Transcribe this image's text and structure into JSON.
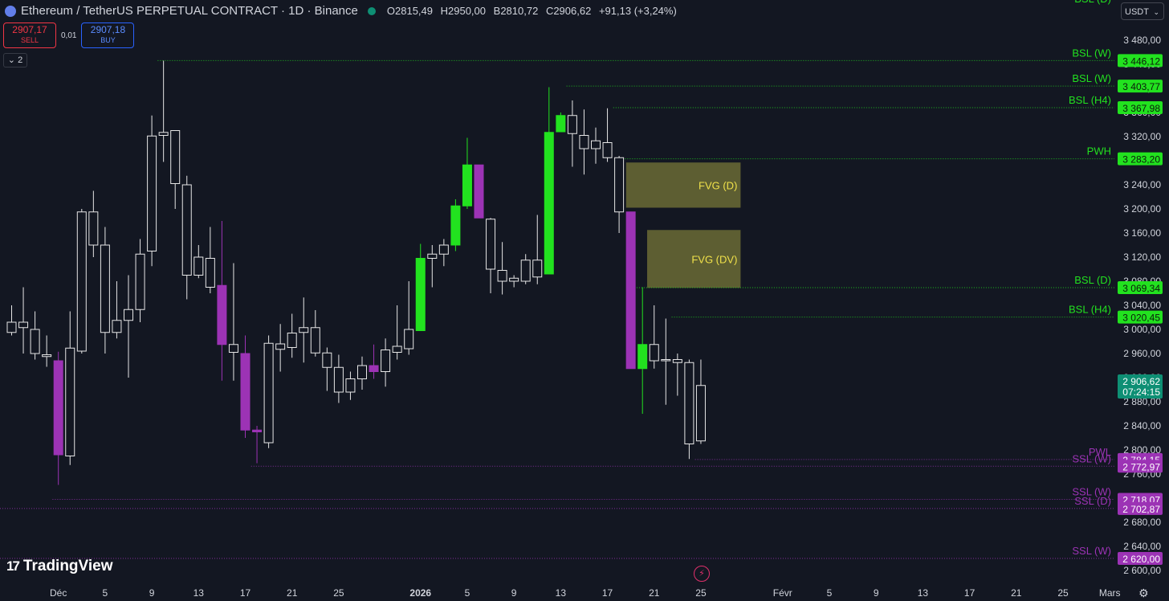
{
  "header": {
    "symbol": "Ethereum / TetherUS PERPETUAL CONTRACT · 1D · Binance",
    "open_label": "O",
    "open": "2815,49",
    "high_label": "H",
    "high": "2950,00",
    "low_label": "B",
    "low": "2810,72",
    "close_label": "C",
    "close": "2906,62",
    "change": "+91,13 (+3,24%)"
  },
  "trade": {
    "sell_price": "2907,17",
    "sell_label": "SELL",
    "spread": "0,01",
    "buy_price": "2907,18",
    "buy_label": "BUY"
  },
  "collapse_count": "2",
  "currency": "USDT",
  "brand": "TradingView",
  "colors": {
    "background": "#131722",
    "bull": "#22e21f",
    "bear": "#9c33b5",
    "neutral": "#e6e6e6",
    "fvg": "#6b6b35",
    "bsl": "#22e21f",
    "ssl": "#9c33b5",
    "current_price": "#0e8f74"
  },
  "chart_data": {
    "type": "candlestick",
    "y_axis": {
      "min": 2600,
      "max": 3480,
      "step": 40,
      "ticks": [
        "3 480,00",
        "3 440,00",
        "3 400,00",
        "3 360,00",
        "3 320,00",
        "3 280,00",
        "3 240,00",
        "3 200,00",
        "3 160,00",
        "3 120,00",
        "3 080,00",
        "3 040,00",
        "3 000,00",
        "2 960,00",
        "2 920,00",
        "2 880,00",
        "2 840,00",
        "2 800,00",
        "2 760,00",
        "2 720,00",
        "2 680,00",
        "2 640,00",
        "2 600,00"
      ]
    },
    "x_axis": {
      "labels": [
        {
          "text": "Déc",
          "index": 4
        },
        {
          "text": "5",
          "index": 8
        },
        {
          "text": "9",
          "index": 12
        },
        {
          "text": "13",
          "index": 16
        },
        {
          "text": "17",
          "index": 20
        },
        {
          "text": "21",
          "index": 24
        },
        {
          "text": "25",
          "index": 28
        },
        {
          "text": "2026",
          "index": 35,
          "bold": true
        },
        {
          "text": "5",
          "index": 39
        },
        {
          "text": "9",
          "index": 43
        },
        {
          "text": "13",
          "index": 47
        },
        {
          "text": "17",
          "index": 51
        },
        {
          "text": "21",
          "index": 55
        },
        {
          "text": "25",
          "index": 59
        },
        {
          "text": "Févr",
          "index": 66
        },
        {
          "text": "5",
          "index": 70
        },
        {
          "text": "9",
          "index": 74
        },
        {
          "text": "13",
          "index": 78
        },
        {
          "text": "17",
          "index": 82
        },
        {
          "text": "21",
          "index": 86
        },
        {
          "text": "25",
          "index": 90
        },
        {
          "text": "Mars",
          "index": 94
        }
      ]
    },
    "candles": [
      {
        "index": 0,
        "o": 3012,
        "h": 3040,
        "l": 2990,
        "c": 2995,
        "style": "neutral"
      },
      {
        "index": 1,
        "o": 3003,
        "h": 3070,
        "l": 2960,
        "c": 3012,
        "style": "neutral"
      },
      {
        "index": 2,
        "o": 3000,
        "h": 3030,
        "l": 2950,
        "c": 2960,
        "style": "neutral"
      },
      {
        "index": 3,
        "o": 2958,
        "h": 2990,
        "l": 2938,
        "c": 2955,
        "style": "neutral"
      },
      {
        "index": 4,
        "o": 2948,
        "h": 2963,
        "l": 2742,
        "c": 2792,
        "style": "bear"
      },
      {
        "index": 5,
        "o": 2790,
        "h": 3030,
        "l": 2775,
        "c": 2969,
        "style": "neutral"
      },
      {
        "index": 6,
        "o": 2964,
        "h": 3200,
        "l": 2960,
        "c": 3195,
        "style": "neutral"
      },
      {
        "index": 7,
        "o": 3195,
        "h": 3230,
        "l": 3120,
        "c": 3140,
        "style": "neutral"
      },
      {
        "index": 8,
        "o": 3140,
        "h": 3170,
        "l": 2960,
        "c": 2995,
        "style": "neutral"
      },
      {
        "index": 9,
        "o": 2995,
        "h": 3080,
        "l": 2985,
        "c": 3015,
        "style": "neutral"
      },
      {
        "index": 10,
        "o": 3015,
        "h": 3090,
        "l": 2920,
        "c": 3033,
        "style": "neutral"
      },
      {
        "index": 11,
        "o": 3033,
        "h": 3150,
        "l": 3012,
        "c": 3125,
        "style": "neutral"
      },
      {
        "index": 12,
        "o": 3130,
        "h": 3355,
        "l": 3105,
        "c": 3321,
        "style": "neutral"
      },
      {
        "index": 13,
        "o": 3327,
        "h": 3446,
        "l": 3278,
        "c": 3322,
        "style": "neutral"
      },
      {
        "index": 14,
        "o": 3330,
        "h": 3330,
        "l": 3200,
        "c": 3242,
        "style": "neutral"
      },
      {
        "index": 15,
        "o": 3240,
        "h": 3255,
        "l": 3050,
        "c": 3090,
        "style": "neutral"
      },
      {
        "index": 16,
        "o": 3090,
        "h": 3140,
        "l": 3085,
        "c": 3120,
        "style": "neutral"
      },
      {
        "index": 17,
        "o": 3118,
        "h": 3170,
        "l": 3060,
        "c": 3070,
        "style": "neutral"
      },
      {
        "index": 18,
        "o": 3073,
        "h": 3180,
        "l": 2915,
        "c": 2975,
        "style": "bear"
      },
      {
        "index": 19,
        "o": 2975,
        "h": 3110,
        "l": 2915,
        "c": 2962,
        "style": "neutral"
      },
      {
        "index": 20,
        "o": 2960,
        "h": 2990,
        "l": 2820,
        "c": 2833,
        "style": "bear"
      },
      {
        "index": 21,
        "o": 2833,
        "h": 2840,
        "l": 2778,
        "c": 2830,
        "style": "bear"
      },
      {
        "index": 22,
        "o": 2812,
        "h": 2990,
        "l": 2803,
        "c": 2977,
        "style": "neutral"
      },
      {
        "index": 23,
        "o": 2976,
        "h": 3009,
        "l": 2930,
        "c": 2967,
        "style": "neutral"
      },
      {
        "index": 24,
        "o": 2970,
        "h": 3026,
        "l": 2953,
        "c": 2994,
        "style": "neutral"
      },
      {
        "index": 25,
        "o": 2995,
        "h": 3053,
        "l": 2945,
        "c": 3003,
        "style": "neutral"
      },
      {
        "index": 26,
        "o": 3003,
        "h": 3032,
        "l": 2955,
        "c": 2961,
        "style": "neutral"
      },
      {
        "index": 27,
        "o": 2961,
        "h": 2970,
        "l": 2898,
        "c": 2937,
        "style": "neutral"
      },
      {
        "index": 28,
        "o": 2937,
        "h": 2958,
        "l": 2878,
        "c": 2896,
        "style": "neutral"
      },
      {
        "index": 29,
        "o": 2896,
        "h": 2930,
        "l": 2883,
        "c": 2918,
        "style": "neutral"
      },
      {
        "index": 30,
        "o": 2918,
        "h": 2955,
        "l": 2900,
        "c": 2940,
        "style": "neutral"
      },
      {
        "index": 31,
        "o": 2940,
        "h": 2975,
        "l": 2918,
        "c": 2930,
        "style": "bear"
      },
      {
        "index": 32,
        "o": 2930,
        "h": 2985,
        "l": 2905,
        "c": 2966,
        "style": "neutral"
      },
      {
        "index": 33,
        "o": 2962,
        "h": 3040,
        "l": 2950,
        "c": 2972,
        "style": "neutral"
      },
      {
        "index": 34,
        "o": 2968,
        "h": 3080,
        "l": 2958,
        "c": 3000,
        "style": "neutral"
      },
      {
        "index": 35,
        "o": 2998,
        "h": 3142,
        "l": 2998,
        "c": 3118,
        "style": "bull"
      },
      {
        "index": 36,
        "o": 3118,
        "h": 3140,
        "l": 3070,
        "c": 3125,
        "style": "neutral"
      },
      {
        "index": 37,
        "o": 3125,
        "h": 3150,
        "l": 3105,
        "c": 3140,
        "style": "neutral"
      },
      {
        "index": 38,
        "o": 3140,
        "h": 3216,
        "l": 3130,
        "c": 3205,
        "style": "bull"
      },
      {
        "index": 39,
        "o": 3205,
        "h": 3318,
        "l": 3200,
        "c": 3273,
        "style": "bull"
      },
      {
        "index": 40,
        "o": 3273,
        "h": 3273,
        "l": 3185,
        "c": 3185,
        "style": "bear"
      },
      {
        "index": 41,
        "o": 3183,
        "h": 3185,
        "l": 3060,
        "c": 3100,
        "style": "neutral"
      },
      {
        "index": 42,
        "o": 3098,
        "h": 3145,
        "l": 3058,
        "c": 3080,
        "style": "neutral"
      },
      {
        "index": 43,
        "o": 3080,
        "h": 3090,
        "l": 3070,
        "c": 3085,
        "style": "neutral"
      },
      {
        "index": 44,
        "o": 3080,
        "h": 3125,
        "l": 3075,
        "c": 3115,
        "style": "neutral"
      },
      {
        "index": 45,
        "o": 3087,
        "h": 3190,
        "l": 3075,
        "c": 3115,
        "style": "neutral"
      },
      {
        "index": 46,
        "o": 3092,
        "h": 3402,
        "l": 3092,
        "c": 3327,
        "style": "bull"
      },
      {
        "index": 47,
        "o": 3328,
        "h": 3360,
        "l": 3328,
        "c": 3355,
        "style": "bull"
      },
      {
        "index": 48,
        "o": 3355,
        "h": 3380,
        "l": 3270,
        "c": 3325,
        "style": "neutral"
      },
      {
        "index": 49,
        "o": 3322,
        "h": 3365,
        "l": 3257,
        "c": 3300,
        "style": "neutral"
      },
      {
        "index": 50,
        "o": 3300,
        "h": 3335,
        "l": 3275,
        "c": 3313,
        "style": "neutral"
      },
      {
        "index": 51,
        "o": 3310,
        "h": 3367,
        "l": 3278,
        "c": 3285,
        "style": "neutral"
      },
      {
        "index": 52,
        "o": 3285,
        "h": 3288,
        "l": 3160,
        "c": 3195,
        "style": "neutral"
      },
      {
        "index": 53,
        "o": 3195,
        "h": 3195,
        "l": 2935,
        "c": 2935,
        "style": "bear"
      },
      {
        "index": 54,
        "o": 2935,
        "h": 3070,
        "l": 2860,
        "c": 2975,
        "style": "bull"
      },
      {
        "index": 55,
        "o": 2975,
        "h": 3040,
        "l": 2935,
        "c": 2948,
        "style": "neutral"
      },
      {
        "index": 56,
        "o": 2948,
        "h": 3018,
        "l": 2875,
        "c": 2950,
        "style": "neutral"
      },
      {
        "index": 57,
        "o": 2950,
        "h": 2960,
        "l": 2890,
        "c": 2945,
        "style": "neutral"
      },
      {
        "index": 58,
        "o": 2945,
        "h": 2950,
        "l": 2785,
        "c": 2810,
        "style": "neutral"
      },
      {
        "index": 59,
        "o": 2815,
        "h": 2950,
        "l": 2810,
        "c": 2907,
        "style": "neutral"
      }
    ],
    "zones": [
      {
        "label": "FVG (D)",
        "top": 3277,
        "bottom": 3202,
        "from_index": 52.6,
        "to_index": 62.4
      },
      {
        "label": "FVG (DV)",
        "top": 3165,
        "bottom": 3069,
        "from_index": 54.4,
        "to_index": 62.4
      }
    ],
    "levels": [
      {
        "label": "BSL (W)",
        "price": 3446.12,
        "price_text": "3 446,12",
        "from_index": 12.5,
        "kind": "bsl"
      },
      {
        "label": "BSL (W)",
        "price": 3403.77,
        "price_text": "3 403,77",
        "from_index": 47.5,
        "kind": "bsl"
      },
      {
        "label": "BSL (H4)",
        "price": 3367.98,
        "price_text": "3 367,98",
        "from_index": 51.5,
        "kind": "bsl"
      },
      {
        "label": "PWH",
        "price": 3283.2,
        "price_text": "3 283,20",
        "from_index": 52.5,
        "kind": "bsl"
      },
      {
        "label": "BSL (D)",
        "price": 3069.34,
        "price_text": "3 069,34",
        "from_index": 53.5,
        "kind": "bsl"
      },
      {
        "label": "BSL (H4)",
        "price": 3020.45,
        "price_text": "3 020,45",
        "from_index": 56.5,
        "kind": "bsl"
      },
      {
        "label": "PWL",
        "price": 2784.15,
        "price_text": "2 784,15",
        "from_index": 58.5,
        "kind": "ssl"
      },
      {
        "label": "SSL (W)",
        "price": 2772.97,
        "price_text": "2 772,97",
        "from_index": 20.5,
        "kind": "ssl"
      },
      {
        "label": "SSL (W)",
        "price": 2718.07,
        "price_text": "2 718,07",
        "from_index": 3.5,
        "kind": "ssl"
      },
      {
        "label": "SSL (D)",
        "price": 2702.87,
        "price_text": "2 702,87",
        "from_index": -1,
        "kind": "ssl"
      },
      {
        "label": "SSL (W)",
        "price": 2620.0,
        "price_text": "2 620,00",
        "from_index": -1,
        "kind": "ssl"
      }
    ],
    "offscreen_label": {
      "label": "BSL (D)"
    },
    "current_price": {
      "price": 2906.62,
      "price_text": "2 906,62",
      "countdown": "07:24:15"
    }
  }
}
